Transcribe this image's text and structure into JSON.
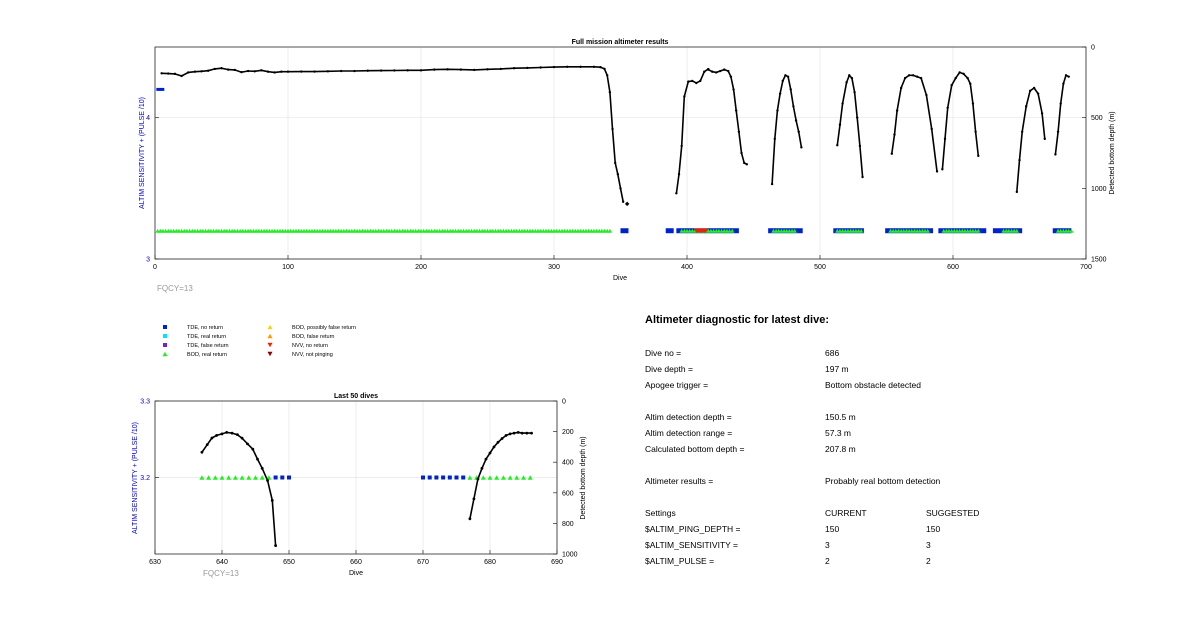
{
  "chart_data": [
    {
      "type": "scatter",
      "title": "Full mission altimeter results",
      "xlabel": "Dive",
      "ylabel_left": "ALTIM SENSITIVITY + (PULSE /10)",
      "ylabel_right": "Detected bottom depth (m)",
      "xlim": [
        0,
        700
      ],
      "ylim_left": [
        3,
        4.5
      ],
      "ylim_right": [
        1500,
        0
      ],
      "x_ticks": [
        "0",
        "100",
        "200",
        "300",
        "400",
        "500",
        "600",
        "700"
      ],
      "y_ticks_left": [
        "3",
        "4"
      ],
      "y_ticks_right": [
        "0",
        "500",
        "1000",
        "1500"
      ],
      "grid": true,
      "annotation": "FQCY=13",
      "setting_segments": [
        {
          "x_start": 1,
          "x_end": 7,
          "value": 4.2
        }
      ],
      "depth_series": [
        {
          "name": "",
          "points": [
            [
              5,
              186
            ],
            [
              10,
              188
            ],
            [
              15,
              190
            ],
            [
              20,
              205
            ],
            [
              25,
              180
            ],
            [
              30,
              175
            ],
            [
              35,
              172
            ],
            [
              40,
              168
            ],
            [
              45,
              155
            ],
            [
              50,
              150
            ],
            [
              55,
              160
            ],
            [
              60,
              162
            ],
            [
              65,
              178
            ],
            [
              70,
              170
            ],
            [
              75,
              172
            ],
            [
              80,
              165
            ],
            [
              85,
              175
            ],
            [
              90,
              180
            ],
            [
              95,
              175
            ],
            [
              100,
              175
            ],
            [
              110,
              174
            ],
            [
              120,
              174
            ],
            [
              130,
              172
            ],
            [
              140,
              170
            ],
            [
              150,
              170
            ],
            [
              160,
              168
            ],
            [
              170,
              167
            ],
            [
              180,
              166
            ],
            [
              190,
              165
            ],
            [
              200,
              165
            ],
            [
              210,
              160
            ],
            [
              220,
              158
            ],
            [
              230,
              160
            ],
            [
              240,
              162
            ],
            [
              250,
              158
            ],
            [
              260,
              155
            ],
            [
              270,
              150
            ],
            [
              280,
              148
            ],
            [
              290,
              145
            ],
            [
              300,
              142
            ],
            [
              310,
              140
            ],
            [
              320,
              140
            ],
            [
              330,
              140
            ],
            [
              335,
              143
            ],
            [
              338,
              155
            ],
            [
              340,
              200
            ],
            [
              342,
              320
            ],
            [
              344,
              580
            ],
            [
              346,
              820
            ],
            [
              348,
              900
            ],
            [
              350,
              1000
            ],
            [
              352,
              1095
            ]
          ]
        },
        {
          "name": "",
          "points": [
            [
              392,
              1035
            ],
            [
              394,
              900
            ],
            [
              396,
              700
            ],
            [
              398,
              350
            ],
            [
              401,
              245
            ],
            [
              404,
              240
            ],
            [
              407,
              255
            ],
            [
              410,
              240
            ],
            [
              413,
              175
            ],
            [
              416,
              156
            ]
          ]
        },
        {
          "name": "",
          "points": [
            [
              416,
              160
            ],
            [
              419,
              175
            ],
            [
              422,
              180
            ],
            [
              425,
              170
            ],
            [
              428,
              160
            ],
            [
              431,
              170
            ],
            [
              433,
              210
            ],
            [
              435,
              300
            ],
            [
              437,
              450
            ],
            [
              439,
              600
            ],
            [
              441,
              750
            ],
            [
              443,
              820
            ],
            [
              445,
              830
            ]
          ]
        },
        {
          "name": "",
          "points": [
            [
              464,
              970
            ],
            [
              466,
              650
            ],
            [
              468,
              450
            ],
            [
              470,
              330
            ],
            [
              472,
              240
            ],
            [
              474,
              200
            ],
            [
              476,
              210
            ],
            [
              478,
              300
            ],
            [
              480,
              420
            ],
            [
              482,
              520
            ],
            [
              484,
              600
            ],
            [
              486,
              710
            ]
          ]
        },
        {
          "name": "",
          "points": [
            [
              513,
              695
            ],
            [
              515,
              550
            ],
            [
              517,
              400
            ],
            [
              520,
              250
            ],
            [
              522,
              200
            ],
            [
              524,
              220
            ],
            [
              526,
              320
            ],
            [
              528,
              500
            ],
            [
              530,
              700
            ],
            [
              532,
              920
            ]
          ]
        },
        {
          "name": "",
          "points": [
            [
              554,
              755
            ],
            [
              556,
              620
            ],
            [
              558,
              450
            ],
            [
              561,
              290
            ],
            [
              564,
              220
            ],
            [
              567,
              200
            ],
            [
              570,
              200
            ],
            [
              573,
              210
            ],
            [
              576,
              220
            ],
            [
              580,
              340
            ],
            [
              584,
              580
            ],
            [
              588,
              880
            ]
          ]
        },
        {
          "name": "",
          "points": [
            [
              592,
              865
            ],
            [
              594,
              650
            ],
            [
              596,
              430
            ],
            [
              599,
              270
            ],
            [
              602,
              220
            ],
            [
              605,
              180
            ],
            [
              608,
              190
            ],
            [
              611,
              220
            ],
            [
              613,
              260
            ],
            [
              615,
              400
            ],
            [
              617,
              600
            ],
            [
              619,
              770
            ]
          ]
        },
        {
          "name": "",
          "points": [
            [
              648,
              1025
            ],
            [
              650,
              800
            ],
            [
              652,
              600
            ],
            [
              655,
              420
            ],
            [
              658,
              310
            ],
            [
              661,
              290
            ],
            [
              664,
              330
            ],
            [
              667,
              470
            ],
            [
              669,
              650
            ]
          ]
        },
        {
          "name": "",
          "points": [
            [
              677,
              760
            ],
            [
              679,
              600
            ],
            [
              681,
              400
            ],
            [
              683,
              260
            ],
            [
              685,
              200
            ],
            [
              687,
              210
            ]
          ]
        }
      ],
      "outlier_points": [
        [
          355,
          1110
        ]
      ],
      "tde_no_return_segments": [
        [
          350,
          356
        ],
        [
          384,
          390
        ],
        [
          392,
          439
        ],
        [
          461,
          487
        ],
        [
          510,
          533
        ],
        [
          549,
          585
        ],
        [
          589,
          625
        ],
        [
          630,
          652
        ],
        [
          675,
          689
        ]
      ],
      "bod_real_return_segments": [
        [
          2,
          18
        ],
        [
          20,
          342
        ],
        [
          396,
          434
        ],
        [
          465,
          482
        ],
        [
          513,
          531
        ],
        [
          553,
          582
        ],
        [
          593,
          620
        ],
        [
          638,
          648
        ],
        [
          679,
          689
        ]
      ],
      "nvv_no_return_points": [
        407,
        408,
        409,
        410,
        411,
        412,
        413,
        414
      ],
      "bod_y": 3.2
    },
    {
      "type": "scatter",
      "title": "Last 50 dives",
      "xlabel": "Dive",
      "ylabel_left": "ALTIM SENSITIVITY + (PULSE /10)",
      "ylabel_right": "Detected bottom depth (m)",
      "xlim": [
        630,
        690
      ],
      "ylim_left": [
        3.1,
        3.3
      ],
      "ylim_right": [
        1000,
        0
      ],
      "x_ticks": [
        "630",
        "640",
        "650",
        "660",
        "670",
        "680",
        "690"
      ],
      "y_ticks_left": [
        "3.2",
        "3.3"
      ],
      "y_ticks_right": [
        "0",
        "200",
        "400",
        "600",
        "800",
        "1000"
      ],
      "grid": true,
      "annotation": "FQCY=13",
      "depth_series": [
        {
          "name": "",
          "points": [
            [
              637,
              335
            ],
            [
              637.8,
              285
            ],
            [
              638.5,
              242
            ],
            [
              639.2,
              225
            ],
            [
              640,
              215
            ],
            [
              640.7,
              205
            ],
            [
              641.5,
              210
            ],
            [
              642.3,
              220
            ],
            [
              643,
              243
            ],
            [
              643.8,
              280
            ],
            [
              644.6,
              315
            ],
            [
              645.3,
              380
            ],
            [
              646,
              440
            ],
            [
              646.8,
              520
            ],
            [
              647.5,
              650
            ],
            [
              648,
              945
            ]
          ]
        },
        {
          "name": "",
          "points": [
            [
              677,
              770
            ],
            [
              677.6,
              640
            ],
            [
              678.2,
              510
            ],
            [
              678.8,
              440
            ],
            [
              679.4,
              380
            ],
            [
              680,
              340
            ],
            [
              680.6,
              300
            ],
            [
              681.2,
              270
            ],
            [
              681.8,
              245
            ],
            [
              682.4,
              225
            ],
            [
              683,
              215
            ],
            [
              683.6,
              210
            ],
            [
              684.2,
              205
            ],
            [
              684.8,
              210
            ],
            [
              685.5,
              210
            ],
            [
              686.2,
              210
            ]
          ]
        }
      ],
      "bod_real_return_points": [
        637,
        638,
        639,
        640,
        641,
        642,
        643,
        644,
        645,
        646,
        647,
        677,
        678,
        679,
        680,
        681,
        682,
        683,
        684,
        685,
        686
      ],
      "tde_no_return_points": [
        648,
        649,
        650,
        670,
        671,
        672,
        673,
        674,
        675,
        676
      ],
      "bod_y": 3.2
    }
  ],
  "legend": {
    "items": [
      {
        "label": "TDE, no return",
        "marker": "square",
        "color": "#0022cc"
      },
      {
        "label": "TDE, real return",
        "marker": "square",
        "color": "#00e5ff"
      },
      {
        "label": "TDE, false return",
        "marker": "square",
        "color": "#7722cc"
      },
      {
        "label": "BOD, real return",
        "marker": "triangle-up",
        "color": "#22ee22"
      },
      {
        "label": "BOD, possibly false return",
        "marker": "triangle-up",
        "color": "#ffd200"
      },
      {
        "label": "BOD, false return",
        "marker": "triangle-up",
        "color": "#ff9900"
      },
      {
        "label": "NVV, no return",
        "marker": "triangle-down",
        "color": "#ee2200"
      },
      {
        "label": "NVV, not pinging",
        "marker": "triangle-down",
        "color": "#8b0000"
      }
    ]
  },
  "diagnostic": {
    "title": "Altimeter diagnostic for latest dive:",
    "rows": [
      {
        "label": "Dive no =",
        "value": "686"
      },
      {
        "label": "Dive depth =",
        "value": "197 m"
      },
      {
        "label": "Apogee trigger =",
        "value": "Bottom obstacle detected"
      },
      {
        "label": "Altim detection depth =",
        "value": "150.5 m"
      },
      {
        "label": "Altim detection range =",
        "value": "57.3 m"
      },
      {
        "label": "Calculated bottom depth =",
        "value": "207.8 m"
      },
      {
        "label": "Altimeter results =",
        "value": "Probably real bottom detection"
      }
    ],
    "settings": {
      "header": {
        "label": "Settings",
        "current": "CURRENT",
        "suggested": "SUGGESTED"
      },
      "rows": [
        {
          "label": "$ALTIM_PING_DEPTH =",
          "current": "150",
          "suggested": "150"
        },
        {
          "label": "$ALTIM_SENSITIVITY =",
          "current": "3",
          "suggested": "3"
        },
        {
          "label": "$ALTIM_PULSE =",
          "current": "2",
          "suggested": "2"
        }
      ]
    }
  },
  "colors": {
    "axis_left": "#0000c8",
    "depth_line": "#000000",
    "grid": "#e6e6e6",
    "fqcy_text": "#999999"
  }
}
